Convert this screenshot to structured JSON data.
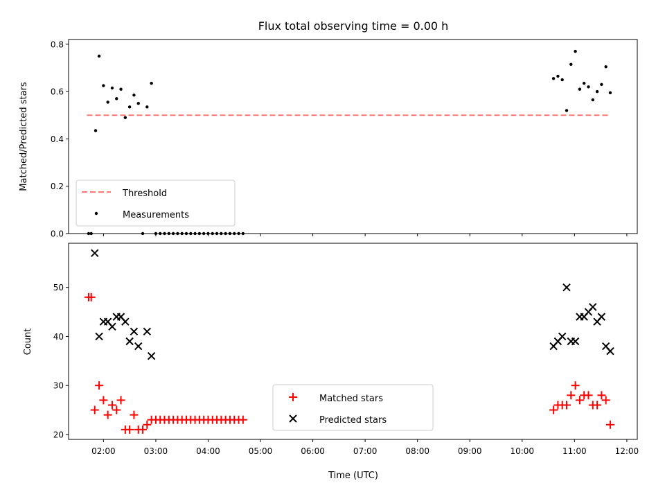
{
  "chart_data": [
    {
      "type": "scatter",
      "title": "Flux total observing time = 0.00 h",
      "xlabel": "",
      "ylabel": "Matched/Predicted stars",
      "ylim": [
        0.0,
        0.82
      ],
      "yticks": [
        "0.0",
        "0.2",
        "0.4",
        "0.6",
        "0.8"
      ],
      "xlim": [
        "01:20",
        "12:12"
      ],
      "threshold": {
        "name": "Threshold",
        "y": 0.5,
        "x": [
          "01:41",
          "11:41"
        ],
        "color": "#ff7777"
      },
      "legend": {
        "position": "lower-left",
        "entries": [
          "Threshold",
          "Measurements"
        ]
      },
      "series": [
        {
          "name": "Measurements",
          "color": "#000000",
          "points": [
            [
              "01:43",
              0.0
            ],
            [
              "01:46",
              0.0
            ],
            [
              "01:51",
              0.435
            ],
            [
              "01:55",
              0.75
            ],
            [
              "02:00",
              0.625
            ],
            [
              "02:05",
              0.555
            ],
            [
              "02:10",
              0.615
            ],
            [
              "02:15",
              0.57
            ],
            [
              "02:20",
              0.61
            ],
            [
              "02:25",
              0.49
            ],
            [
              "02:30",
              0.535
            ],
            [
              "02:35",
              0.585
            ],
            [
              "02:40",
              0.55
            ],
            [
              "02:45",
              0.0
            ],
            [
              "02:50",
              0.535
            ],
            [
              "02:55",
              0.635
            ],
            [
              "03:00",
              0.0
            ],
            [
              "03:05",
              0.0
            ],
            [
              "03:10",
              0.0
            ],
            [
              "03:15",
              0.0
            ],
            [
              "03:20",
              0.0
            ],
            [
              "03:25",
              0.0
            ],
            [
              "03:30",
              0.0
            ],
            [
              "03:35",
              0.0
            ],
            [
              "03:40",
              0.0
            ],
            [
              "03:45",
              0.0
            ],
            [
              "03:50",
              0.0
            ],
            [
              "03:55",
              0.0
            ],
            [
              "04:00",
              0.0
            ],
            [
              "04:05",
              0.0
            ],
            [
              "04:10",
              0.0
            ],
            [
              "04:15",
              0.0
            ],
            [
              "04:20",
              0.0
            ],
            [
              "04:25",
              0.0
            ],
            [
              "04:30",
              0.0
            ],
            [
              "04:35",
              0.0
            ],
            [
              "04:40",
              0.0
            ],
            [
              "10:36",
              0.655
            ],
            [
              "10:41",
              0.665
            ],
            [
              "10:46",
              0.65
            ],
            [
              "10:51",
              0.52
            ],
            [
              "10:56",
              0.715
            ],
            [
              "11:01",
              0.77
            ],
            [
              "11:06",
              0.61
            ],
            [
              "11:11",
              0.635
            ],
            [
              "11:16",
              0.62
            ],
            [
              "11:21",
              0.565
            ],
            [
              "11:26",
              0.6
            ],
            [
              "11:31",
              0.63
            ],
            [
              "11:36",
              0.705
            ],
            [
              "11:41",
              0.595
            ]
          ]
        }
      ]
    },
    {
      "type": "scatter",
      "title": "",
      "xlabel": "Time (UTC)",
      "ylabel": "Count",
      "ylim": [
        19,
        59
      ],
      "yticks": [
        "20",
        "30",
        "40",
        "50"
      ],
      "xlim": [
        "01:20",
        "12:12"
      ],
      "xticks": [
        "02:00",
        "03:00",
        "04:00",
        "05:00",
        "06:00",
        "07:00",
        "08:00",
        "09:00",
        "10:00",
        "11:00",
        "12:00"
      ],
      "legend": {
        "position": "lower-center",
        "entries": [
          "Matched stars",
          "Predicted stars"
        ]
      },
      "series": [
        {
          "name": "Matched stars",
          "marker": "+",
          "color": "#ff0000",
          "points": [
            [
              "01:43",
              48
            ],
            [
              "01:46",
              48
            ],
            [
              "01:50",
              25
            ],
            [
              "01:55",
              30
            ],
            [
              "02:00",
              27
            ],
            [
              "02:05",
              24
            ],
            [
              "02:10",
              26
            ],
            [
              "02:15",
              25
            ],
            [
              "02:20",
              27
            ],
            [
              "02:25",
              21
            ],
            [
              "02:30",
              21
            ],
            [
              "02:35",
              24
            ],
            [
              "02:40",
              21
            ],
            [
              "02:45",
              21
            ],
            [
              "02:50",
              22
            ],
            [
              "02:55",
              23
            ],
            [
              "03:00",
              23
            ],
            [
              "03:05",
              23
            ],
            [
              "03:10",
              23
            ],
            [
              "03:15",
              23
            ],
            [
              "03:20",
              23
            ],
            [
              "03:25",
              23
            ],
            [
              "03:30",
              23
            ],
            [
              "03:35",
              23
            ],
            [
              "03:40",
              23
            ],
            [
              "03:45",
              23
            ],
            [
              "03:50",
              23
            ],
            [
              "03:55",
              23
            ],
            [
              "04:00",
              23
            ],
            [
              "04:05",
              23
            ],
            [
              "04:10",
              23
            ],
            [
              "04:15",
              23
            ],
            [
              "04:20",
              23
            ],
            [
              "04:25",
              23
            ],
            [
              "04:30",
              23
            ],
            [
              "04:35",
              23
            ],
            [
              "04:40",
              23
            ],
            [
              "10:36",
              25
            ],
            [
              "10:41",
              26
            ],
            [
              "10:46",
              26
            ],
            [
              "10:51",
              26
            ],
            [
              "10:56",
              28
            ],
            [
              "11:01",
              30
            ],
            [
              "11:06",
              27
            ],
            [
              "11:11",
              28
            ],
            [
              "11:16",
              28
            ],
            [
              "11:21",
              26
            ],
            [
              "11:26",
              26
            ],
            [
              "11:31",
              28
            ],
            [
              "11:36",
              27
            ],
            [
              "11:41",
              22
            ]
          ]
        },
        {
          "name": "Predicted stars",
          "marker": "x",
          "color": "#000000",
          "points": [
            [
              "01:50",
              57
            ],
            [
              "01:55",
              40
            ],
            [
              "02:00",
              43
            ],
            [
              "02:05",
              43
            ],
            [
              "02:10",
              42
            ],
            [
              "02:15",
              44
            ],
            [
              "02:20",
              44
            ],
            [
              "02:25",
              43
            ],
            [
              "02:30",
              39
            ],
            [
              "02:35",
              41
            ],
            [
              "02:40",
              38
            ],
            [
              "02:50",
              41
            ],
            [
              "02:55",
              36
            ],
            [
              "10:36",
              38
            ],
            [
              "10:41",
              39
            ],
            [
              "10:46",
              40
            ],
            [
              "10:51",
              50
            ],
            [
              "10:56",
              39
            ],
            [
              "11:01",
              39
            ],
            [
              "11:06",
              44
            ],
            [
              "11:11",
              44
            ],
            [
              "11:16",
              45
            ],
            [
              "11:21",
              46
            ],
            [
              "11:26",
              43
            ],
            [
              "11:31",
              44
            ],
            [
              "11:36",
              38
            ],
            [
              "11:41",
              37
            ]
          ]
        }
      ]
    }
  ]
}
